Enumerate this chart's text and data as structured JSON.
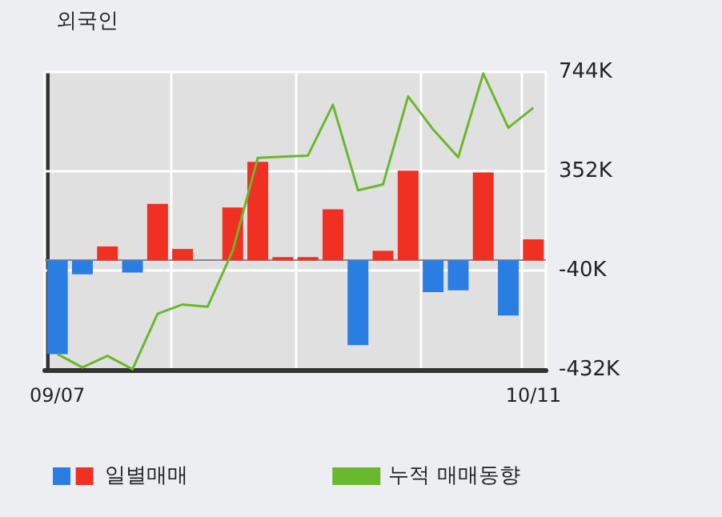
{
  "chart_data": {
    "type": "bar",
    "title": "외국인",
    "categories": [
      "09/07",
      null,
      null,
      null,
      null,
      null,
      null,
      null,
      null,
      null,
      null,
      null,
      null,
      null,
      null,
      null,
      null,
      null,
      null,
      "10/11"
    ],
    "series": [
      {
        "name": "일별매매",
        "values": [
          -370000,
          -55000,
          55000,
          -48000,
          223000,
          45000,
          0,
          209000,
          389000,
          13000,
          13000,
          202000,
          -335000,
          38000,
          354000,
          -125000,
          -118000,
          347000,
          -218000,
          83000
        ],
        "colors": [
          "#2a7de1",
          "#2a7de1",
          "#f03022",
          "#2a7de1",
          "#f03022",
          "#f03022",
          "#f03022",
          "#f03022",
          "#f03022",
          "#f03022",
          "#f03022",
          "#f03022",
          "#2a7de1",
          "#f03022",
          "#f03022",
          "#2a7de1",
          "#2a7de1",
          "#f03022",
          "#2a7de1",
          "#f03022"
        ]
      },
      {
        "name": "누적 매매동향",
        "type": "line",
        "color": "#6ab82d",
        "values": [
          -370000,
          -423000,
          -377000,
          -430000,
          -211000,
          -174000,
          -183000,
          38000,
          405000,
          410000,
          414000,
          615000,
          277000,
          300000,
          648000,
          517000,
          407000,
          738000,
          524000,
          603000
        ]
      }
    ],
    "ylim": [
      -432000,
      744000
    ],
    "yticks": [
      {
        "value": 744000,
        "label": "744K"
      },
      {
        "value": 352000,
        "label": "352K"
      },
      {
        "value": -40000,
        "label": "-40K"
      },
      {
        "value": -432000,
        "label": "-432K"
      }
    ],
    "ref_lines": [
      {
        "axis": "y",
        "value": 0,
        "color": "#888888"
      }
    ],
    "grid": true,
    "legend": "bottom",
    "marker": "none",
    "line_style": "solid"
  }
}
